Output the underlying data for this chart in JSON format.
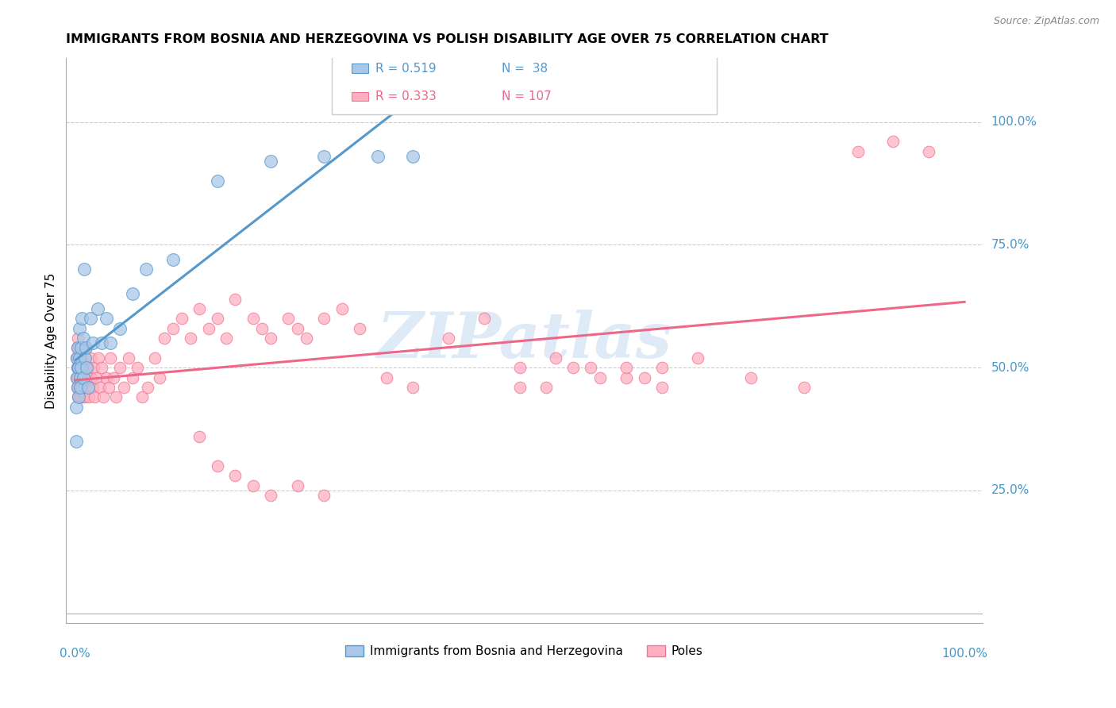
{
  "title": "IMMIGRANTS FROM BOSNIA AND HERZEGOVINA VS POLISH DISABILITY AGE OVER 75 CORRELATION CHART",
  "source": "Source: ZipAtlas.com",
  "ylabel": "Disability Age Over 75",
  "ytick_labels": [
    "100.0%",
    "75.0%",
    "50.0%",
    "25.0%"
  ],
  "ytick_values": [
    1.0,
    0.75,
    0.5,
    0.25
  ],
  "bosnia_R": 0.519,
  "bosnia_N": 38,
  "poles_R": 0.333,
  "poles_N": 107,
  "legend_label_1": "Immigrants from Bosnia and Herzegovina",
  "legend_label_2": "Poles",
  "blue_fill": "#a8c8e8",
  "blue_edge": "#5599cc",
  "pink_fill": "#ffb0c0",
  "pink_edge": "#ee7799",
  "blue_line": "#5599cc",
  "pink_line": "#ee6688",
  "blue_dash": "#aaccdd",
  "watermark_color": "#c8dff0",
  "bg_color": "#ffffff",
  "grid_color": "#cccccc",
  "axis_text_color": "#4499cc",
  "bosnia_x": [
    0.001,
    0.001,
    0.002,
    0.002,
    0.003,
    0.003,
    0.003,
    0.004,
    0.004,
    0.005,
    0.005,
    0.006,
    0.006,
    0.007,
    0.007,
    0.008,
    0.009,
    0.009,
    0.01,
    0.011,
    0.012,
    0.013,
    0.015,
    0.017,
    0.02,
    0.025,
    0.03,
    0.035,
    0.04,
    0.05,
    0.065,
    0.08,
    0.11,
    0.16,
    0.22,
    0.28,
    0.34,
    0.38
  ],
  "bosnia_y": [
    0.42,
    0.35,
    0.48,
    0.52,
    0.5,
    0.46,
    0.54,
    0.5,
    0.44,
    0.52,
    0.58,
    0.48,
    0.46,
    0.5,
    0.54,
    0.6,
    0.48,
    0.56,
    0.7,
    0.52,
    0.54,
    0.5,
    0.46,
    0.6,
    0.55,
    0.62,
    0.55,
    0.6,
    0.55,
    0.58,
    0.65,
    0.7,
    0.72,
    0.88,
    0.92,
    0.93,
    0.93,
    0.93
  ],
  "poles_x": [
    0.001,
    0.001,
    0.002,
    0.002,
    0.002,
    0.003,
    0.003,
    0.003,
    0.003,
    0.004,
    0.004,
    0.004,
    0.005,
    0.005,
    0.005,
    0.006,
    0.006,
    0.006,
    0.007,
    0.007,
    0.007,
    0.008,
    0.008,
    0.008,
    0.009,
    0.009,
    0.01,
    0.01,
    0.011,
    0.011,
    0.012,
    0.012,
    0.013,
    0.014,
    0.015,
    0.016,
    0.017,
    0.018,
    0.02,
    0.021,
    0.022,
    0.024,
    0.026,
    0.028,
    0.03,
    0.032,
    0.035,
    0.038,
    0.04,
    0.043,
    0.046,
    0.05,
    0.055,
    0.06,
    0.065,
    0.07,
    0.075,
    0.082,
    0.09,
    0.095,
    0.1,
    0.11,
    0.12,
    0.13,
    0.14,
    0.15,
    0.16,
    0.17,
    0.18,
    0.2,
    0.21,
    0.22,
    0.24,
    0.25,
    0.26,
    0.28,
    0.3,
    0.32,
    0.35,
    0.38,
    0.42,
    0.46,
    0.5,
    0.54,
    0.58,
    0.62,
    0.66,
    0.7,
    0.76,
    0.82,
    0.88,
    0.92,
    0.96,
    0.5,
    0.53,
    0.56,
    0.59,
    0.62,
    0.64,
    0.66,
    0.14,
    0.16,
    0.18,
    0.2,
    0.22,
    0.25,
    0.28
  ],
  "poles_y": [
    0.48,
    0.52,
    0.46,
    0.5,
    0.54,
    0.44,
    0.48,
    0.52,
    0.56,
    0.46,
    0.5,
    0.54,
    0.44,
    0.48,
    0.52,
    0.46,
    0.5,
    0.54,
    0.44,
    0.48,
    0.52,
    0.46,
    0.5,
    0.54,
    0.44,
    0.5,
    0.46,
    0.52,
    0.44,
    0.48,
    0.5,
    0.54,
    0.46,
    0.48,
    0.5,
    0.44,
    0.52,
    0.48,
    0.46,
    0.5,
    0.44,
    0.48,
    0.52,
    0.46,
    0.5,
    0.44,
    0.48,
    0.46,
    0.52,
    0.48,
    0.44,
    0.5,
    0.46,
    0.52,
    0.48,
    0.5,
    0.44,
    0.46,
    0.52,
    0.48,
    0.56,
    0.58,
    0.6,
    0.56,
    0.62,
    0.58,
    0.6,
    0.56,
    0.64,
    0.6,
    0.58,
    0.56,
    0.6,
    0.58,
    0.56,
    0.6,
    0.62,
    0.58,
    0.48,
    0.46,
    0.56,
    0.6,
    0.5,
    0.52,
    0.5,
    0.48,
    0.5,
    0.52,
    0.48,
    0.46,
    0.94,
    0.96,
    0.94,
    0.46,
    0.46,
    0.5,
    0.48,
    0.5,
    0.48,
    0.46,
    0.36,
    0.3,
    0.28,
    0.26,
    0.24,
    0.26,
    0.24
  ]
}
